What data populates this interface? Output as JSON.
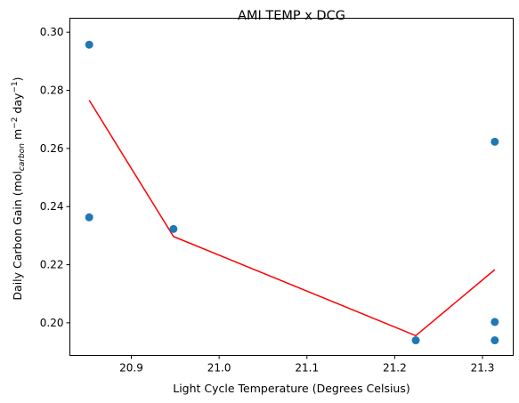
{
  "chart_data": {
    "type": "scatter",
    "title": "AMI TEMP x DCG",
    "xlabel": "Light Cycle Temperature (Degrees Celsius)",
    "ylabel": {
      "main": "Daily Carbon Gain (mol",
      "sub": "carbon",
      "rest1": " m",
      "sup1": "−2",
      "rest2": " day",
      "sup2": "−1",
      "rest3": ")"
    },
    "xlim": [
      20.83,
      21.335
    ],
    "ylim": [
      0.1888,
      0.3048
    ],
    "xticks": [
      20.9,
      21.0,
      21.1,
      21.2,
      21.3
    ],
    "xtick_labels": [
      "20.9",
      "21.0",
      "21.1",
      "21.2",
      "21.3"
    ],
    "yticks": [
      0.2,
      0.22,
      0.24,
      0.26,
      0.28,
      0.3
    ],
    "ytick_labels": [
      "0.20",
      "0.22",
      "0.24",
      "0.26",
      "0.28",
      "0.30"
    ],
    "grid": false,
    "series": [
      {
        "kind": "scatter",
        "color": "#1f77b4",
        "points": [
          {
            "x": 20.852,
            "y": 0.2957
          },
          {
            "x": 20.852,
            "y": 0.2363
          },
          {
            "x": 20.948,
            "y": 0.2323
          },
          {
            "x": 21.224,
            "y": 0.194
          },
          {
            "x": 21.314,
            "y": 0.2623
          },
          {
            "x": 21.314,
            "y": 0.2003
          },
          {
            "x": 21.314,
            "y": 0.194
          }
        ]
      },
      {
        "kind": "line",
        "color": "#ff0000",
        "points": [
          {
            "x": 20.852,
            "y": 0.2766
          },
          {
            "x": 20.948,
            "y": 0.2297
          },
          {
            "x": 21.224,
            "y": 0.1956
          },
          {
            "x": 21.314,
            "y": 0.2183
          }
        ]
      }
    ]
  }
}
